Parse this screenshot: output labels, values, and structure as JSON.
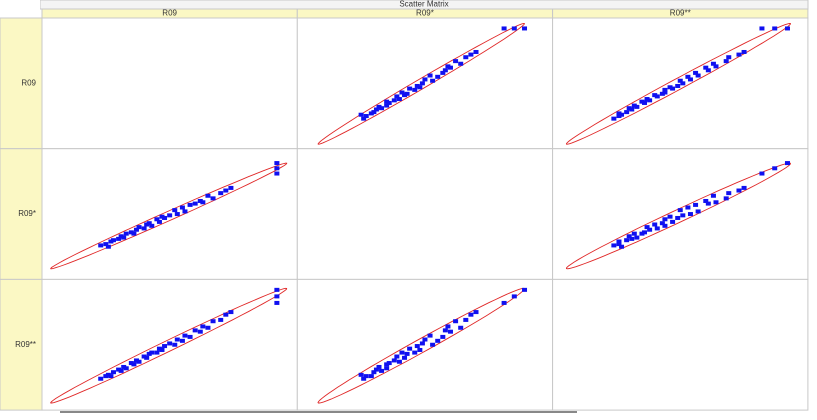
{
  "chart_data": {
    "type": "scatter",
    "title": "Scatter Matrix",
    "variables": [
      {
        "name": "R09",
        "values": [
          23,
          25,
          26,
          27,
          28,
          30,
          31,
          32,
          33,
          35,
          36,
          37,
          38,
          40,
          41,
          42,
          43,
          45,
          46,
          47,
          48,
          50,
          52,
          53,
          55,
          56,
          58,
          60,
          62,
          63,
          65,
          67,
          70,
          72,
          74,
          92,
          92,
          92
        ]
      },
      {
        "name": "R09*",
        "values": [
          26,
          27,
          25,
          29,
          30,
          31,
          33,
          32,
          35,
          36,
          35,
          38,
          40,
          39,
          42,
          43,
          41,
          46,
          44,
          48,
          47,
          49,
          53,
          50,
          55,
          52,
          57,
          58,
          60,
          59,
          64,
          62,
          66,
          68,
          70,
          81,
          85,
          89
        ]
      },
      {
        "name": "R09**",
        "values": [
          24,
          26,
          27,
          26,
          29,
          31,
          30,
          33,
          32,
          36,
          35,
          38,
          37,
          41,
          40,
          43,
          44,
          44,
          47,
          46,
          49,
          51,
          50,
          54,
          53,
          57,
          56,
          61,
          60,
          64,
          63,
          68,
          69,
          73,
          75,
          82,
          87,
          92
        ]
      }
    ],
    "xlim": [
      0,
      100
    ],
    "ylim": [
      0,
      100
    ],
    "color": "#1010f0",
    "ellipse_color": "#e02828"
  }
}
